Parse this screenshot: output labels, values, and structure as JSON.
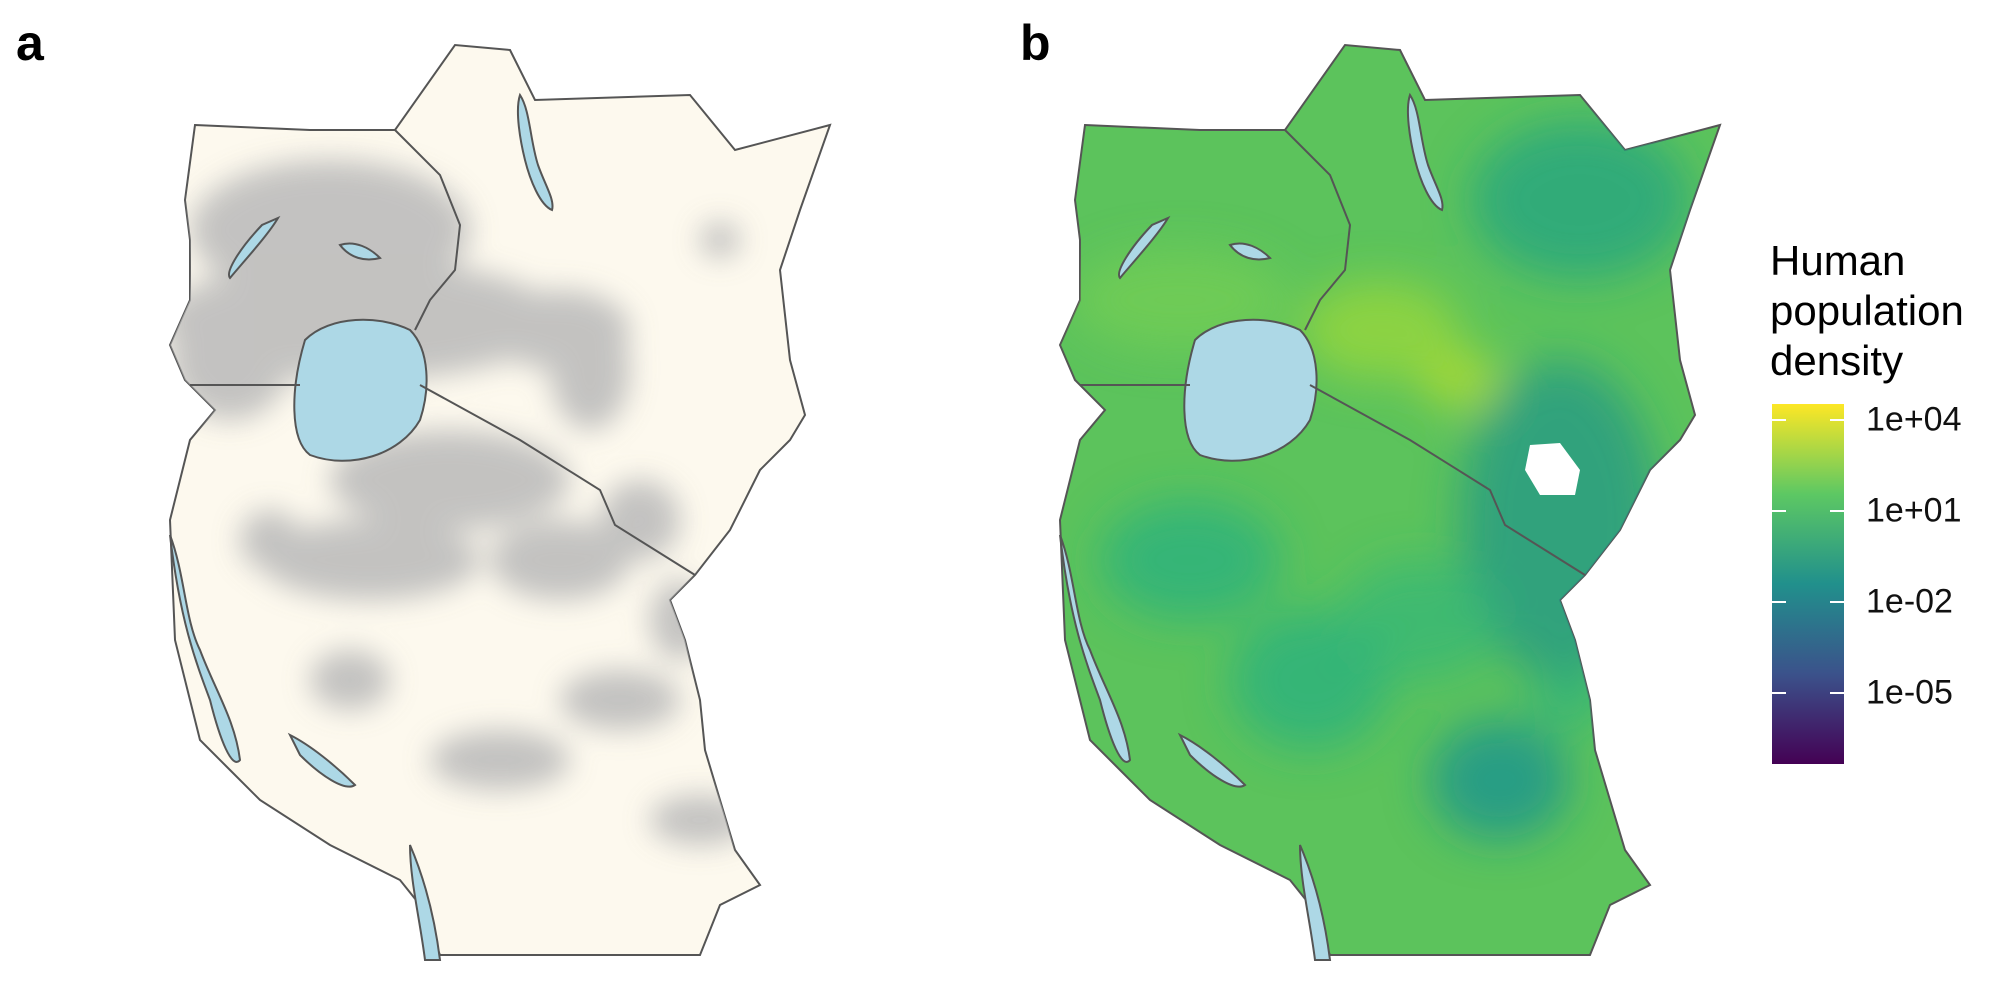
{
  "panels": {
    "a": {
      "label": "a"
    },
    "b": {
      "label": "b"
    }
  },
  "legend": {
    "title_lines": [
      "Human",
      "population",
      "density"
    ],
    "scale": "log",
    "ticks": [
      "1e+04",
      "1e+01",
      "1e-02",
      "1e-05"
    ],
    "colormap": [
      "#440154",
      "#3b528b",
      "#21908c",
      "#5dc863",
      "#fde725"
    ]
  },
  "colors": {
    "land_a": "#fdf9ee",
    "occurrence_points": "#b9b9b9",
    "water": "#add8e6",
    "border": "#555555",
    "density_base": "#5cc35c"
  }
}
